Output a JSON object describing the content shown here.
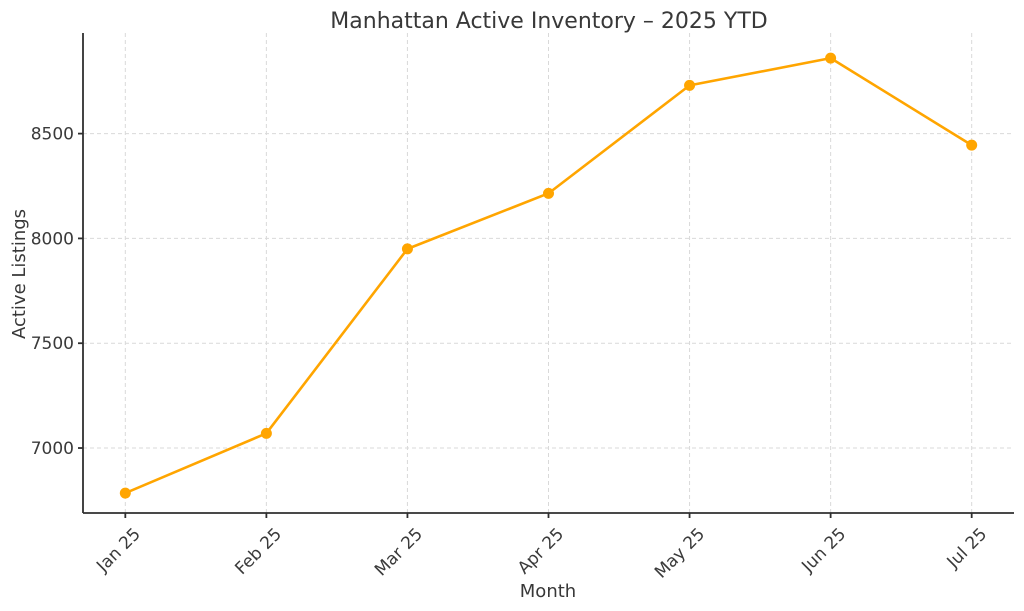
{
  "chart_data": {
    "type": "line",
    "title": "Manhattan Active Inventory – 2025 YTD",
    "xlabel": "Month",
    "ylabel": "Active Listings",
    "categories": [
      "Jan 25",
      "Feb 25",
      "Mar 25",
      "Apr 25",
      "May 25",
      "Jun 25",
      "Jul 25"
    ],
    "series": [
      {
        "name": "Active Listings",
        "values": [
          6785,
          7070,
          7950,
          8215,
          8730,
          8860,
          8445
        ]
      }
    ],
    "yticks": [
      7000,
      7500,
      8000,
      8500
    ],
    "ylim": [
      6690,
      8980
    ],
    "xlim": [
      -0.3,
      6.3
    ],
    "grid": true,
    "grid_style": "dashed",
    "legend": "none",
    "line_color": "#FFA500",
    "marker": "circle",
    "background": "#FFFFFF",
    "x_tick_rotation_deg": 45
  }
}
